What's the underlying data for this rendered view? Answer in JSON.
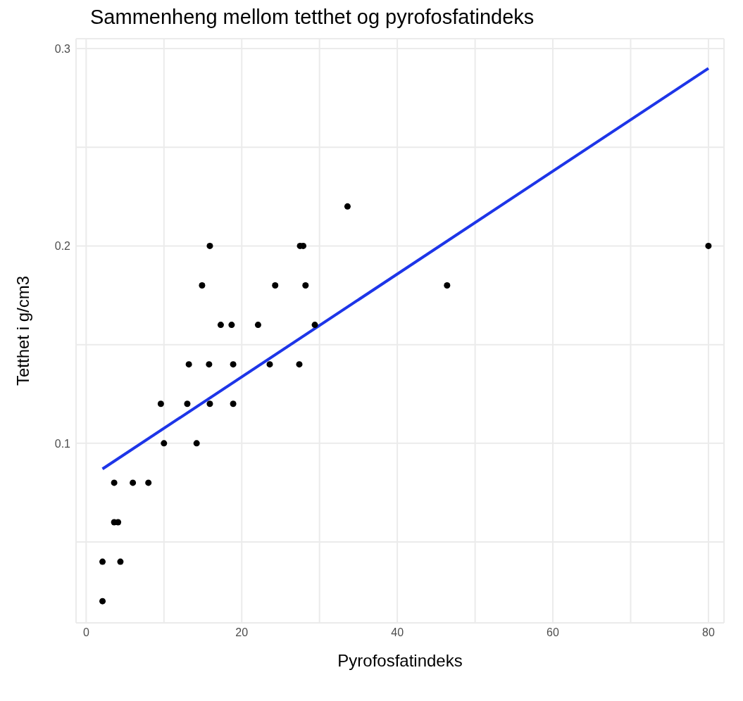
{
  "chart_data": {
    "type": "scatter",
    "title": "Sammenheng mellom tetthet og pyrofosfatindeks",
    "xlabel": "Pyrofosfatindeks",
    "ylabel": "Tetthet i g/cm3",
    "xlim": [
      -1.3,
      82
    ],
    "xticks": [
      0,
      {
        "value": 10,
        "label": null
      },
      20,
      {
        "value": 30,
        "label": null
      },
      40,
      {
        "value": 50,
        "label": null
      },
      60,
      {
        "value": 70,
        "label": null
      },
      80
    ],
    "ylim": [
      0.009,
      0.305
    ],
    "yticks": [
      {
        "value": 0.05,
        "label": null
      },
      0.1,
      {
        "value": 0.15,
        "label": null
      },
      0.2,
      {
        "value": 0.25,
        "label": null
      },
      0.3
    ],
    "grid": true,
    "marker": "circle",
    "series": [
      {
        "color": "#000000",
        "x": [
          2.1,
          2.1,
          4.4,
          3.6,
          3.6,
          4.1,
          6.0,
          8.0,
          9.6,
          10.0,
          13.0,
          13.2,
          14.2,
          14.9,
          15.9,
          15.8,
          15.9,
          17.3,
          18.7,
          18.9,
          18.9,
          22.1,
          23.6,
          24.3,
          27.4,
          27.5,
          27.9,
          28.2,
          29.4,
          33.6,
          46.4,
          80
        ],
        "values": [
          0.02,
          0.04,
          0.04,
          0.08,
          0.06,
          0.06,
          0.08,
          0.08,
          0.12,
          0.1,
          0.12,
          0.14,
          0.1,
          0.18,
          0.2,
          0.14,
          0.12,
          0.16,
          0.16,
          0.14,
          0.12,
          0.16,
          0.14,
          0.18,
          0.14,
          0.2,
          0.2,
          0.18,
          0.16,
          0.22,
          0.18,
          0.2
        ]
      },
      {
        "type": "line",
        "color": "#1d35e8",
        "line_style": "solid",
        "marker": "none",
        "x": [
          2.1,
          80
        ],
        "values": [
          0.087,
          0.29
        ]
      }
    ]
  }
}
